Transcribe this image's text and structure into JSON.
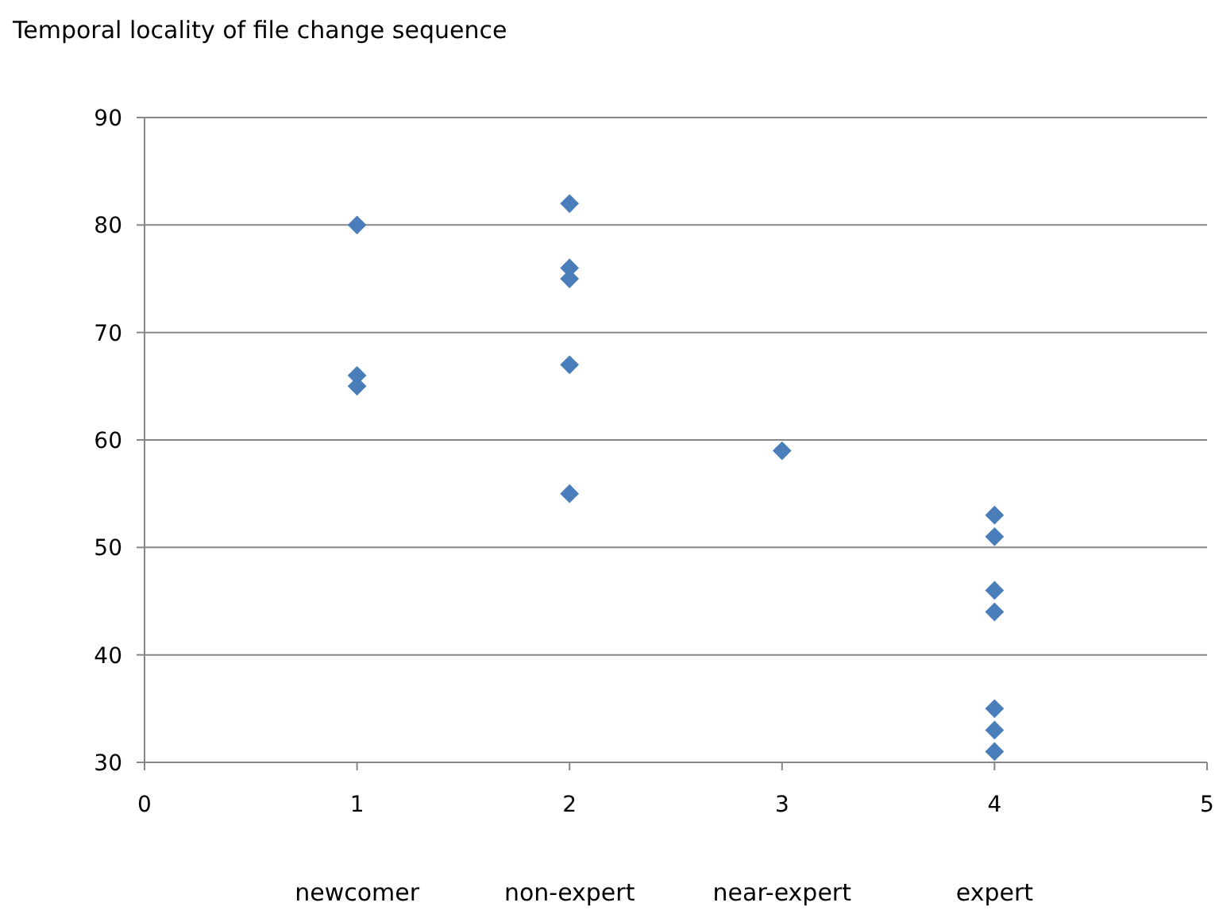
{
  "chart_data": {
    "type": "scatter",
    "title": "Temporal locality of file change sequence",
    "x": [
      1,
      1,
      1,
      2,
      2,
      2,
      2,
      2,
      3,
      4,
      4,
      4,
      4,
      4,
      4,
      4
    ],
    "values": [
      80,
      66,
      65,
      82,
      76,
      75,
      67,
      55,
      59,
      53,
      51,
      46,
      44,
      35,
      33,
      31
    ],
    "color": "#4a7ebb",
    "marker": "diamond",
    "xlim": [
      0,
      5
    ],
    "xticks": [
      0,
      1,
      2,
      3,
      4,
      5
    ],
    "ylim": [
      30,
      90
    ],
    "yticks": [
      30,
      40,
      50,
      60,
      70,
      80,
      90
    ],
    "grid": "y",
    "annotations": [
      "newcomer",
      "non-expert",
      "near-expert",
      "expert"
    ]
  }
}
